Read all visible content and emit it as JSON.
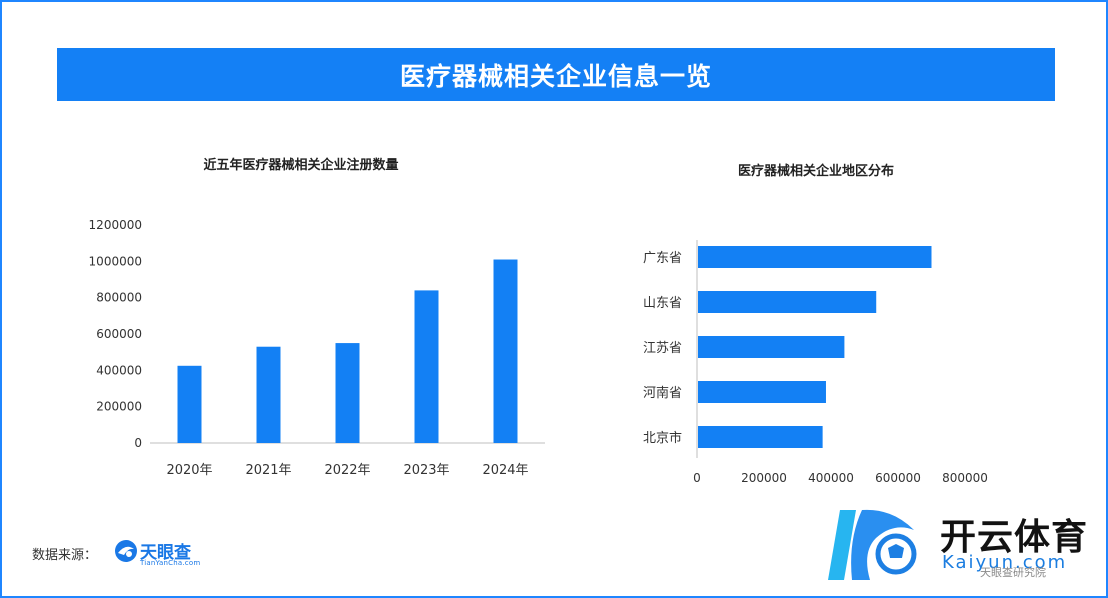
{
  "banner": {
    "title": "医疗器械相关企业信息一览"
  },
  "colors": {
    "accent": "#1480f5",
    "bar": "#1380f4"
  },
  "chart_data": [
    {
      "type": "bar",
      "title": "近五年医疗器械相关企业注册数量",
      "categories": [
        "2020年",
        "2021年",
        "2022年",
        "2023年",
        "2024年"
      ],
      "values": [
        425000,
        530000,
        550000,
        840000,
        1010000
      ],
      "ylim": [
        0,
        1200000
      ],
      "yticks": [
        "0",
        "200000",
        "400000",
        "600000",
        "800000",
        "1000000",
        "1200000"
      ],
      "ytick_values": [
        0,
        200000,
        400000,
        600000,
        800000,
        1000000,
        1200000
      ],
      "grid": false
    },
    {
      "type": "bar",
      "orientation": "horizontal",
      "title": "医疗器械相关企业地区分布",
      "categories": [
        "广东省",
        "山东省",
        "江苏省",
        "河南省",
        "北京市"
      ],
      "values": [
        700000,
        535000,
        440000,
        385000,
        375000
      ],
      "xlim": [
        0,
        800000
      ],
      "xticks": [
        "0",
        "200000",
        "400000",
        "600000",
        "800000"
      ],
      "xtick_values": [
        0,
        200000,
        400000,
        600000,
        800000
      ],
      "grid": false
    }
  ],
  "footer": {
    "source_label": "数据来源：",
    "logo_name": "天眼查",
    "logo_sub": "TianYanCha.com"
  },
  "watermark": {
    "name": "开云体育",
    "domain": "Kaiyun.com",
    "faint_text": "天眼查研究院"
  }
}
